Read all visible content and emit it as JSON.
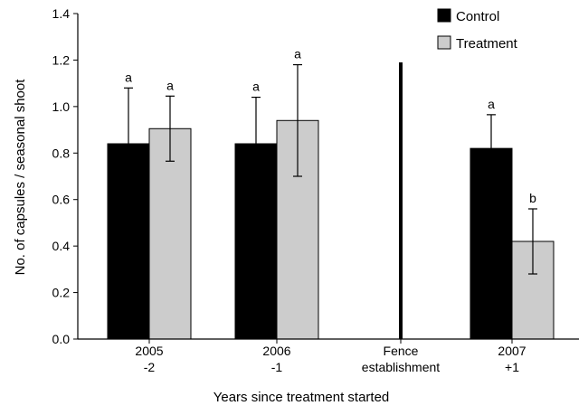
{
  "chart_data": {
    "type": "bar",
    "categories": [
      {
        "line1": "2005",
        "line2": "-2"
      },
      {
        "line1": "2006",
        "line2": "-1"
      },
      {
        "line1": "Fence",
        "line2": "establishment"
      },
      {
        "line1": "2007",
        "line2": "+1"
      }
    ],
    "series": [
      {
        "name": "Control",
        "color": "#000000",
        "values": [
          0.84,
          0.84,
          null,
          0.82
        ],
        "errors": [
          0.24,
          0.2,
          null,
          0.145
        ],
        "labels": [
          "a",
          "a",
          null,
          "a"
        ]
      },
      {
        "name": "Treatment",
        "color": "#cccccc",
        "values": [
          0.905,
          0.94,
          null,
          0.42
        ],
        "errors": [
          0.14,
          0.24,
          null,
          0.14
        ],
        "labels": [
          "a",
          "a",
          null,
          "b"
        ]
      }
    ],
    "marker_line": {
      "category_index": 2,
      "top_value": 1.19
    },
    "ylim": [
      0,
      1.4
    ],
    "yticks": [
      "0.0",
      "0.2",
      "0.4",
      "0.6",
      "0.8",
      "1.0",
      "1.2",
      "1.4"
    ],
    "ylabel": "No. of capsules / seasonal shoot",
    "xlabel": "Years since treatment started",
    "legend_position": "top-right"
  }
}
